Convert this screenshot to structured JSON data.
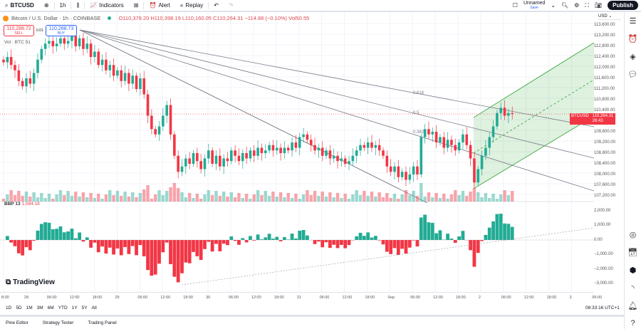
{
  "toolbar": {
    "symbol": "BTCUSD",
    "interval": "1h",
    "indicators": "Indicators",
    "alert": "Alert",
    "replay": "Replay",
    "layout_name": "Unnamed",
    "save": "Save",
    "publish": "Publish"
  },
  "legend": {
    "title": "Bitcoin / U.S. Dollar · 1h · COINBASE",
    "ohlc": "O110,379.20 H110,398.19 L110,160.05 C110,264.31 −114.88 (−0.10%) Vol50.55",
    "sell_price": "110,288.72",
    "sell": "SELL",
    "spread": "0.01",
    "buy_price": "110,288.73",
    "buy": "BUY",
    "volume_label": "Vol · BTC  51"
  },
  "indicator": {
    "name": "BBP 13",
    "value": "1,084.18"
  },
  "price_axis": {
    "currency": "USD",
    "ticks": [
      "113,600.00",
      "113,200.00",
      "112,800.00",
      "112,400.00",
      "112,000.00",
      "111,600.00",
      "111,200.00",
      "110,800.00",
      "110,400.00",
      "109,600.00",
      "109,200.00",
      "108,800.00",
      "108,400.00",
      "108,000.00",
      "107,600.00",
      "107,200.00"
    ],
    "last_symbol": "BTCUSD",
    "last_price": "110,264.31",
    "countdown": "26:43"
  },
  "bbp_axis": {
    "ticks": [
      "2,000.00",
      "1,000.00",
      "0.00",
      "−1,000.00",
      "−2,000.00",
      "−3,000.00"
    ]
  },
  "fib_labels": [
    "0.618",
    "0.5",
    "0.382"
  ],
  "time_axis": [
    "8:00",
    "28",
    "06:00",
    "12:00",
    "18:00",
    "29",
    "06:00",
    "12:00",
    "18:00",
    "30",
    "06:00",
    "12:00",
    "18:00",
    "31",
    "06:00",
    "12:00",
    "18:00",
    "Sep",
    "06:00",
    "12:00",
    "18:00",
    "2",
    "06:00",
    "12:00",
    "18:00",
    "3",
    "06:00"
  ],
  "ranges": [
    "1D",
    "5D",
    "1M",
    "3M",
    "6M",
    "YTD",
    "1Y",
    "5Y",
    "All"
  ],
  "clock": "08:33:16 UTC+1",
  "bottom_tabs": [
    "Pine Editor",
    "Strategy Tester",
    "Trading Panel"
  ],
  "brand": "TradingView",
  "colors": {
    "up": "#22ab94",
    "down": "#f23645",
    "channel": "#4caf50"
  },
  "chart_data": {
    "type": "candlestick",
    "closes": [
      112200,
      112400,
      112100,
      111900,
      111500,
      111300,
      111600,
      111400,
      111800,
      112300,
      112700,
      112900,
      113000,
      112800,
      112900,
      113100,
      112900,
      113000,
      113200,
      112800,
      113100,
      112700,
      112900,
      112400,
      112600,
      112100,
      112300,
      111900,
      112100,
      111700,
      111900,
      111500,
      111800,
      111400,
      111700,
      111200,
      111600,
      111000,
      110200,
      109700,
      109500,
      109800,
      110200,
      110600,
      109500,
      108700,
      108100,
      108300,
      108600,
      108400,
      108800,
      108500,
      108200,
      108600,
      108900,
      108400,
      108700,
      108300,
      108600,
      108500,
      108900,
      108700,
      108500,
      108800,
      108600,
      108900,
      108700,
      109000,
      108800,
      108900,
      109100,
      108900,
      109000,
      108800,
      109000,
      108900,
      109200,
      109000,
      109400,
      109500,
      109300,
      109100,
      108900,
      109000,
      108700,
      108900,
      108600,
      108700,
      108500,
      108600,
      108400,
      108500,
      108700,
      108900,
      109100,
      109000,
      109200,
      109000,
      109100,
      108900,
      108700,
      108300,
      108100,
      108300,
      107900,
      108100,
      107800,
      108000,
      108300,
      108000,
      109400,
      109700,
      109500,
      109600,
      109200,
      109400,
      109000,
      109300,
      109100,
      108900,
      109200,
      109500,
      109100,
      108600,
      107700,
      108200,
      108700,
      109000,
      109400,
      109800,
      110300,
      110500,
      110200,
      110300,
      110264.31
    ]
  }
}
